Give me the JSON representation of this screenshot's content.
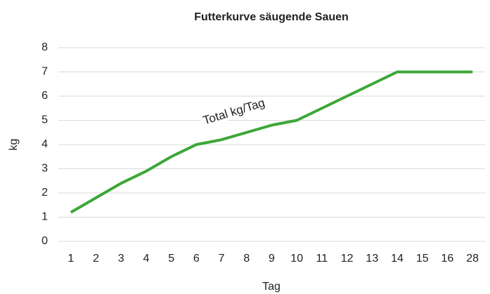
{
  "chart_data": {
    "type": "line",
    "title": "Futterkurve säugende Sauen",
    "x_label": "Tag",
    "y_label": "kg",
    "categories": [
      "1",
      "2",
      "3",
      "4",
      "5",
      "6",
      "7",
      "8",
      "9",
      "10",
      "11",
      "12",
      "13",
      "14",
      "15",
      "16",
      "28"
    ],
    "series": [
      {
        "name": "Total kg/Tag",
        "color": "#3ca737",
        "values": [
          1.2,
          1.8,
          2.4,
          2.9,
          3.5,
          4.0,
          4.2,
          4.5,
          4.8,
          5.0,
          5.5,
          6.0,
          6.5,
          7.0,
          7.0,
          7.0,
          7.0
        ]
      }
    ],
    "ylim": [
      0,
      8
    ],
    "yticks": [
      0,
      1,
      2,
      3,
      4,
      5,
      6,
      7,
      8
    ],
    "grid": true
  }
}
